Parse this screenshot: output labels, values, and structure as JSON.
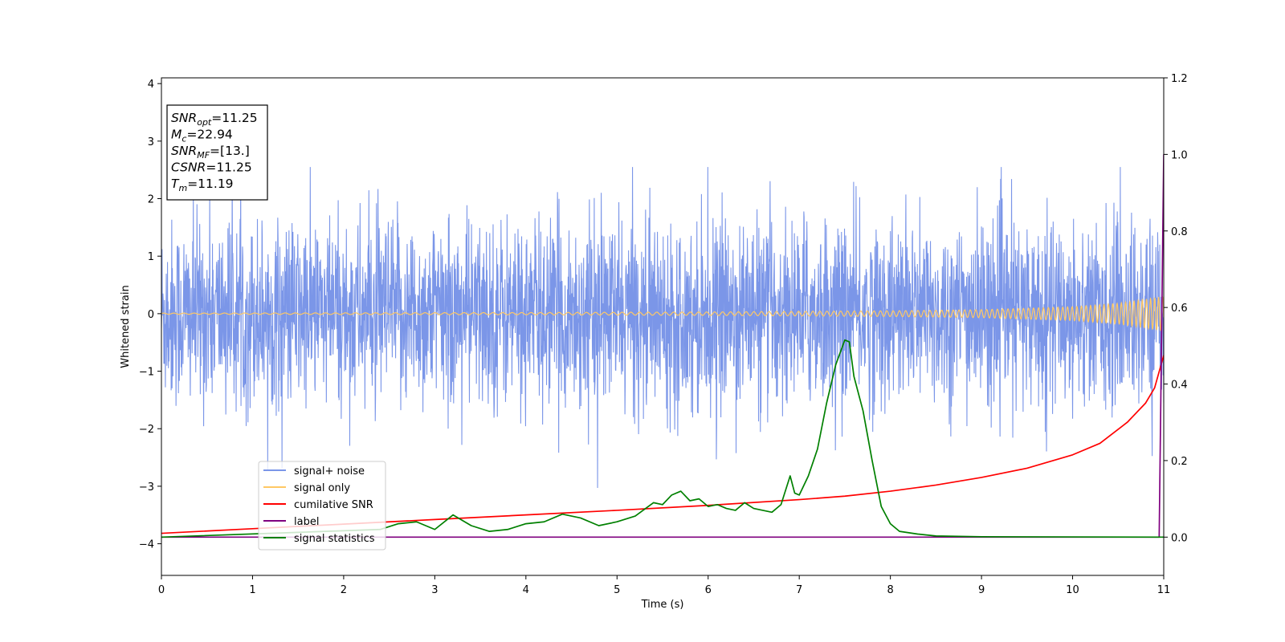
{
  "chart_data": {
    "type": "line",
    "xlabel": "Time (s)",
    "ylabel": "Whitened strain",
    "xlim": [
      0,
      11
    ],
    "ylim_left": [
      -4.55,
      4.1
    ],
    "ylim_right": [
      -0.1,
      1.2
    ],
    "x_ticks": [
      "0",
      "1",
      "2",
      "3",
      "4",
      "5",
      "6",
      "7",
      "8",
      "9",
      "10",
      "11"
    ],
    "y_ticks_left": [
      "4",
      "3",
      "2",
      "1",
      "0",
      "−1",
      "−2",
      "−3",
      "−4"
    ],
    "y_ticks_right": [
      "1.2",
      "1.0",
      "0.8",
      "0.6",
      "0.4",
      "0.2",
      "0.0"
    ],
    "grid": false,
    "legend_position": "lower-left",
    "series": [
      {
        "name": "signal+ noise",
        "color": "#7b96e8",
        "axis": "left",
        "description_values": {
          "envelope_center": 0,
          "typical_amplitude": 1.3,
          "max": 2.55,
          "min": -3.3
        }
      },
      {
        "name": "signal only",
        "color": "#ffc864",
        "axis": "left",
        "x": [
          0,
          2,
          4,
          6,
          8,
          9,
          10,
          10.5,
          11
        ],
        "amplitude": [
          0.01,
          0.015,
          0.02,
          0.03,
          0.05,
          0.07,
          0.12,
          0.18,
          0.3
        ]
      },
      {
        "name": "cumilative SNR",
        "color": "#ff0000",
        "axis": "right",
        "x": [
          0,
          1,
          2,
          3,
          4,
          5,
          6,
          7,
          7.5,
          8,
          8.5,
          9,
          9.5,
          10,
          10.3,
          10.6,
          10.8,
          10.9,
          11
        ],
        "y": [
          0.01,
          0.022,
          0.034,
          0.046,
          0.058,
          0.07,
          0.083,
          0.098,
          0.107,
          0.12,
          0.136,
          0.156,
          0.18,
          0.215,
          0.245,
          0.3,
          0.35,
          0.39,
          0.475
        ]
      },
      {
        "name": "label",
        "color": "#800080",
        "axis": "right",
        "x": [
          0,
          10.9,
          10.95,
          11
        ],
        "y": [
          0.0,
          0.0,
          0.0,
          1.0
        ]
      },
      {
        "name": "signal statistics",
        "color": "#008000",
        "axis": "right",
        "x": [
          0,
          2.4,
          2.6,
          2.8,
          3.0,
          3.2,
          3.4,
          3.6,
          3.8,
          4.0,
          4.2,
          4.4,
          4.6,
          4.8,
          5.0,
          5.2,
          5.4,
          5.5,
          5.6,
          5.7,
          5.8,
          5.9,
          6.0,
          6.1,
          6.2,
          6.3,
          6.4,
          6.5,
          6.6,
          6.7,
          6.8,
          6.9,
          6.95,
          7.0,
          7.1,
          7.2,
          7.3,
          7.4,
          7.5,
          7.55,
          7.6,
          7.7,
          7.8,
          7.9,
          8.0,
          8.1,
          8.3,
          8.5,
          9.0,
          11.0
        ],
        "y": [
          0.0,
          0.02,
          0.035,
          0.04,
          0.02,
          0.058,
          0.03,
          0.015,
          0.02,
          0.035,
          0.04,
          0.06,
          0.05,
          0.03,
          0.04,
          0.055,
          0.09,
          0.085,
          0.11,
          0.12,
          0.095,
          0.1,
          0.08,
          0.085,
          0.075,
          0.07,
          0.09,
          0.075,
          0.07,
          0.065,
          0.085,
          0.16,
          0.115,
          0.11,
          0.16,
          0.23,
          0.35,
          0.45,
          0.515,
          0.51,
          0.42,
          0.33,
          0.2,
          0.08,
          0.035,
          0.015,
          0.008,
          0.003,
          0.001,
          0.0
        ]
      }
    ],
    "annotations": [
      {
        "base": "SNR",
        "sub": "opt",
        "value": "=11.25"
      },
      {
        "base": "M",
        "sub": "c",
        "value": "=22.94"
      },
      {
        "base": "SNR",
        "sub": "MF",
        "value": "=[13.]"
      },
      {
        "base": "CSNR",
        "sub": "",
        "value": "=11.25"
      },
      {
        "base": "T",
        "sub": "m",
        "value": "=11.19"
      }
    ]
  }
}
